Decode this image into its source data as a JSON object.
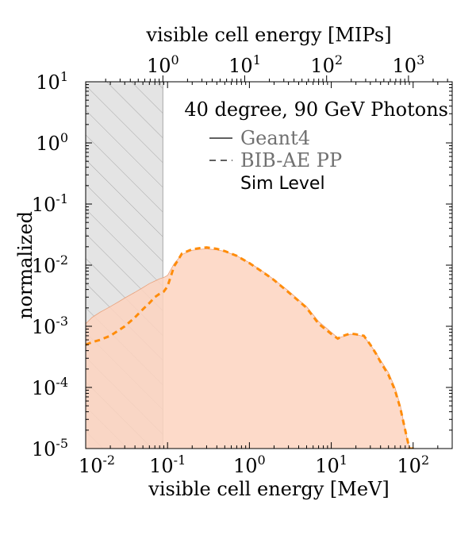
{
  "chart_data": {
    "type": "area",
    "title": "40 degree, 90 GeV Photons",
    "xlabel": "visible cell energy [MeV]",
    "ylabel": "normalized",
    "x2label": "visible cell energy [MIPs]",
    "xscale": "log",
    "yscale": "log",
    "xlim": [
      0.01,
      300
    ],
    "ylim": [
      1e-05,
      10
    ],
    "x2lim": [
      0.114,
      3420
    ],
    "x_ticks": [
      {
        "value": 0.01,
        "base": "10",
        "exp": "-2"
      },
      {
        "value": 0.1,
        "base": "10",
        "exp": "-1"
      },
      {
        "value": 1,
        "base": "10",
        "exp": "0"
      },
      {
        "value": 10,
        "base": "10",
        "exp": "1"
      },
      {
        "value": 100,
        "base": "10",
        "exp": "2"
      }
    ],
    "y_ticks": [
      {
        "value": 1e-05,
        "base": "10",
        "exp": "-5"
      },
      {
        "value": 0.0001,
        "base": "10",
        "exp": "-4"
      },
      {
        "value": 0.001,
        "base": "10",
        "exp": "-3"
      },
      {
        "value": 0.01,
        "base": "10",
        "exp": "-2"
      },
      {
        "value": 0.1,
        "base": "10",
        "exp": "-1"
      },
      {
        "value": 1,
        "base": "10",
        "exp": "0"
      },
      {
        "value": 10,
        "base": "10",
        "exp": "1"
      }
    ],
    "x2_ticks": [
      {
        "value": 1,
        "base": "10",
        "exp": "0"
      },
      {
        "value": 10,
        "base": "10",
        "exp": "1"
      },
      {
        "value": 100,
        "base": "10",
        "exp": "2"
      },
      {
        "value": 1000,
        "base": "10",
        "exp": "3"
      }
    ],
    "mip_threshold_mev": 0.0877,
    "legend": {
      "placement": "upper-right",
      "entries": [
        {
          "label": "Geant4",
          "style": "solid"
        },
        {
          "label": "BIB-AE PP",
          "style": "dashed"
        }
      ],
      "note": "Sim Level"
    },
    "series": [
      {
        "name": "Geant4",
        "style": "filled",
        "x": [
          0.01,
          0.012,
          0.015,
          0.02,
          0.025,
          0.03,
          0.04,
          0.05,
          0.06,
          0.07,
          0.08,
          0.09,
          0.1,
          0.12,
          0.15,
          0.2,
          0.25,
          0.3,
          0.4,
          0.5,
          0.7,
          1.0,
          1.5,
          2,
          3,
          4,
          5,
          7,
          10,
          12,
          14,
          17,
          20,
          25,
          30,
          35,
          40,
          50,
          60,
          70,
          80,
          90,
          95,
          100,
          102
        ],
        "values": [
          0.0011,
          0.0014,
          0.0017,
          0.0021,
          0.0025,
          0.0029,
          0.0036,
          0.0043,
          0.005,
          0.0055,
          0.006,
          0.0063,
          0.0068,
          0.0105,
          0.015,
          0.0175,
          0.0182,
          0.0185,
          0.0178,
          0.0168,
          0.0142,
          0.011,
          0.0077,
          0.0058,
          0.0038,
          0.0027,
          0.0021,
          0.0012,
          0.0008,
          0.00065,
          0.00068,
          0.00074,
          0.00073,
          0.00068,
          0.0005,
          0.00037,
          0.00028,
          0.000175,
          0.0001,
          5e-05,
          2e-05,
          1e-05,
          1e-05,
          1e-05,
          1e-05
        ]
      },
      {
        "name": "BIB-AE PP",
        "style": "dashed",
        "x": [
          0.01,
          0.012,
          0.015,
          0.02,
          0.025,
          0.03,
          0.04,
          0.05,
          0.06,
          0.07,
          0.08,
          0.09,
          0.1,
          0.12,
          0.15,
          0.2,
          0.25,
          0.3,
          0.4,
          0.5,
          0.7,
          1.0,
          1.5,
          2,
          3,
          4,
          5,
          7,
          10,
          12,
          14,
          17,
          20,
          25,
          30,
          35,
          40,
          50,
          60,
          70,
          80,
          90,
          95,
          100,
          102
        ],
        "values": [
          0.0005,
          0.00055,
          0.0006,
          0.0007,
          0.00085,
          0.001,
          0.0014,
          0.0019,
          0.0024,
          0.003,
          0.0034,
          0.0037,
          0.0045,
          0.0095,
          0.0155,
          0.0182,
          0.019,
          0.0195,
          0.0185,
          0.017,
          0.0142,
          0.0108,
          0.0075,
          0.0057,
          0.0036,
          0.0026,
          0.002,
          0.0011,
          0.00075,
          0.00063,
          0.0007,
          0.00076,
          0.00074,
          0.0007,
          0.0005,
          0.00036,
          0.00026,
          0.00016,
          9e-05,
          4.5e-05,
          2e-05,
          1e-05,
          1e-05,
          1e-05,
          1e-05
        ]
      }
    ]
  },
  "colors": {
    "fill": "#fdd4bf",
    "fill_edge": "#e9a27c",
    "dashed": "#ff8c0a",
    "legend_text": "#707070",
    "hatch_bg": "#e4e4e4",
    "hatch_line": "#a8a8a8"
  }
}
